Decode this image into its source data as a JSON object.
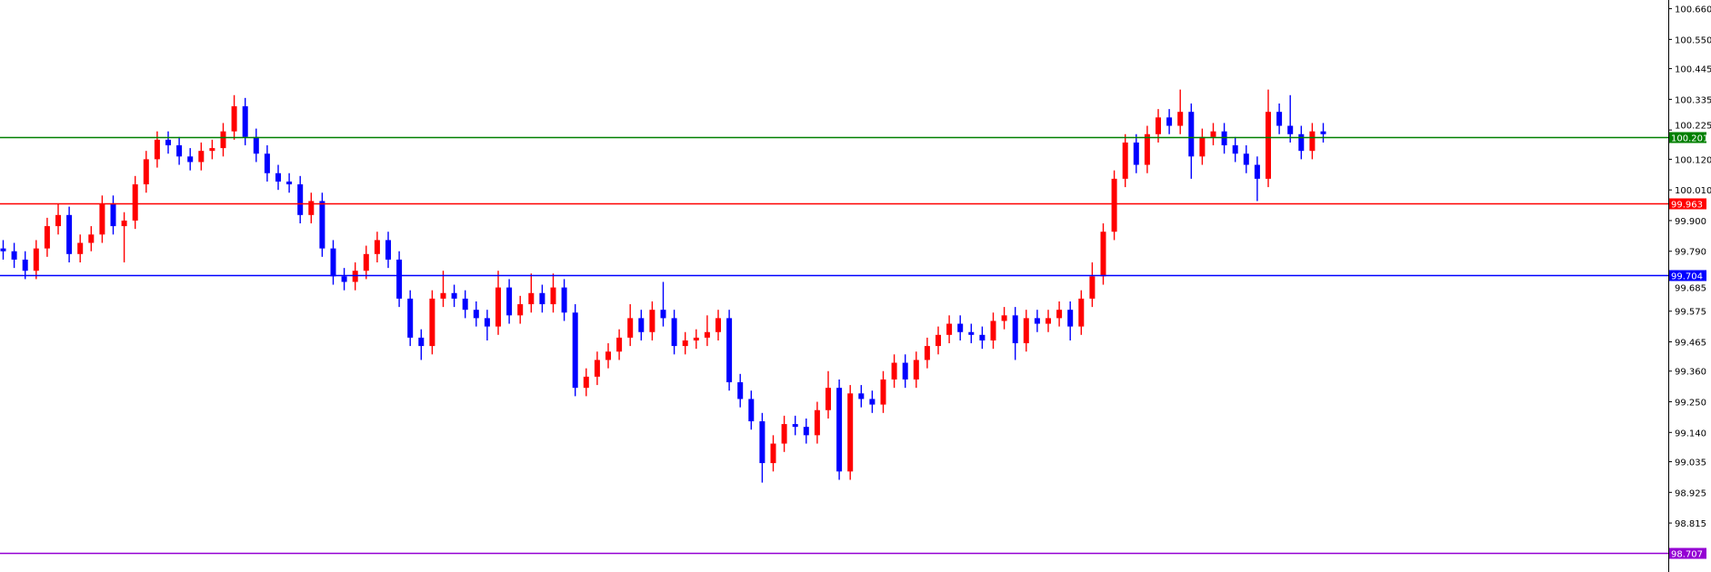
{
  "chart_data": {
    "type": "candlestick",
    "colors": {
      "bull": "#ff0000",
      "bear": "#0000ff",
      "axis": "#000000",
      "background": "#ffffff"
    },
    "ylim": [
      98.68,
      100.69
    ],
    "y_ticks": [
      "100.660",
      "100.550",
      "100.445",
      "100.335",
      "100.225",
      "100.120",
      "100.010",
      "99.900",
      "99.790",
      "99.685",
      "99.575",
      "99.465",
      "99.360",
      "99.250",
      "99.140",
      "99.035",
      "98.925",
      "98.815"
    ],
    "levels": [
      {
        "value": "100.201",
        "color": "#008000"
      },
      {
        "value": "99.963",
        "color": "#ff0000"
      },
      {
        "value": "99.704",
        "color": "#0000ff"
      },
      {
        "value": "98.707",
        "color": "#9400d3"
      }
    ],
    "candles_ohlc": [
      [
        99.8,
        99.83,
        99.76,
        99.79
      ],
      [
        99.79,
        99.82,
        99.73,
        99.76
      ],
      [
        99.76,
        99.79,
        99.69,
        99.72
      ],
      [
        99.72,
        99.83,
        99.69,
        99.8
      ],
      [
        99.8,
        99.91,
        99.77,
        99.88
      ],
      [
        99.88,
        99.96,
        99.85,
        99.92
      ],
      [
        99.92,
        99.95,
        99.75,
        99.78
      ],
      [
        99.78,
        99.85,
        99.75,
        99.82
      ],
      [
        99.82,
        99.88,
        99.79,
        99.85
      ],
      [
        99.85,
        99.99,
        99.82,
        99.96
      ],
      [
        99.96,
        99.99,
        99.85,
        99.88
      ],
      [
        99.88,
        99.93,
        99.75,
        99.9
      ],
      [
        99.9,
        100.06,
        99.87,
        100.03
      ],
      [
        100.03,
        100.15,
        100.0,
        100.12
      ],
      [
        100.12,
        100.22,
        100.09,
        100.19
      ],
      [
        100.19,
        100.22,
        100.14,
        100.17
      ],
      [
        100.17,
        100.2,
        100.1,
        100.13
      ],
      [
        100.13,
        100.16,
        100.08,
        100.11
      ],
      [
        100.11,
        100.18,
        100.08,
        100.15
      ],
      [
        100.15,
        100.19,
        100.12,
        100.16
      ],
      [
        100.16,
        100.25,
        100.13,
        100.22
      ],
      [
        100.22,
        100.35,
        100.19,
        100.31
      ],
      [
        100.31,
        100.34,
        100.17,
        100.2
      ],
      [
        100.2,
        100.23,
        100.11,
        100.14
      ],
      [
        100.14,
        100.17,
        100.04,
        100.07
      ],
      [
        100.07,
        100.1,
        100.01,
        100.04
      ],
      [
        100.04,
        100.07,
        100.0,
        100.03
      ],
      [
        100.03,
        100.06,
        99.89,
        99.92
      ],
      [
        99.92,
        100.0,
        99.89,
        99.97
      ],
      [
        99.97,
        100.0,
        99.77,
        99.8
      ],
      [
        99.8,
        99.83,
        99.67,
        99.7
      ],
      [
        99.7,
        99.73,
        99.65,
        99.68
      ],
      [
        99.68,
        99.75,
        99.65,
        99.72
      ],
      [
        99.72,
        99.81,
        99.69,
        99.78
      ],
      [
        99.78,
        99.86,
        99.75,
        99.83
      ],
      [
        99.83,
        99.86,
        99.73,
        99.76
      ],
      [
        99.76,
        99.79,
        99.59,
        99.62
      ],
      [
        99.62,
        99.65,
        99.45,
        99.48
      ],
      [
        99.48,
        99.51,
        99.4,
        99.45
      ],
      [
        99.45,
        99.65,
        99.42,
        99.62
      ],
      [
        99.62,
        99.72,
        99.59,
        99.64
      ],
      [
        99.64,
        99.67,
        99.59,
        99.62
      ],
      [
        99.62,
        99.65,
        99.55,
        99.58
      ],
      [
        99.58,
        99.61,
        99.52,
        99.55
      ],
      [
        99.55,
        99.58,
        99.47,
        99.52
      ],
      [
        99.52,
        99.72,
        99.49,
        99.66
      ],
      [
        99.66,
        99.69,
        99.53,
        99.56
      ],
      [
        99.56,
        99.63,
        99.53,
        99.6
      ],
      [
        99.6,
        99.71,
        99.57,
        99.64
      ],
      [
        99.64,
        99.67,
        99.57,
        99.6
      ],
      [
        99.6,
        99.71,
        99.57,
        99.66
      ],
      [
        99.66,
        99.69,
        99.54,
        99.57
      ],
      [
        99.57,
        99.6,
        99.27,
        99.3
      ],
      [
        99.3,
        99.37,
        99.27,
        99.34
      ],
      [
        99.34,
        99.43,
        99.31,
        99.4
      ],
      [
        99.4,
        99.46,
        99.37,
        99.43
      ],
      [
        99.43,
        99.51,
        99.4,
        99.48
      ],
      [
        99.48,
        99.6,
        99.45,
        99.55
      ],
      [
        99.55,
        99.58,
        99.47,
        99.5
      ],
      [
        99.5,
        99.61,
        99.47,
        99.58
      ],
      [
        99.58,
        99.68,
        99.52,
        99.55
      ],
      [
        99.55,
        99.58,
        99.42,
        99.45
      ],
      [
        99.45,
        99.5,
        99.42,
        99.47
      ],
      [
        99.47,
        99.51,
        99.44,
        99.48
      ],
      [
        99.48,
        99.56,
        99.45,
        99.5
      ],
      [
        99.5,
        99.58,
        99.47,
        99.55
      ],
      [
        99.55,
        99.58,
        99.29,
        99.32
      ],
      [
        99.32,
        99.35,
        99.23,
        99.26
      ],
      [
        99.26,
        99.29,
        99.15,
        99.18
      ],
      [
        99.18,
        99.21,
        98.96,
        99.03
      ],
      [
        99.03,
        99.13,
        99.0,
        99.1
      ],
      [
        99.1,
        99.2,
        99.07,
        99.17
      ],
      [
        99.17,
        99.2,
        99.13,
        99.16
      ],
      [
        99.16,
        99.19,
        99.1,
        99.13
      ],
      [
        99.13,
        99.25,
        99.1,
        99.22
      ],
      [
        99.22,
        99.36,
        99.19,
        99.3
      ],
      [
        99.3,
        99.33,
        98.97,
        99.0
      ],
      [
        99.0,
        99.31,
        98.97,
        99.28
      ],
      [
        99.28,
        99.31,
        99.23,
        99.26
      ],
      [
        99.26,
        99.29,
        99.21,
        99.24
      ],
      [
        99.24,
        99.36,
        99.21,
        99.33
      ],
      [
        99.33,
        99.42,
        99.3,
        99.39
      ],
      [
        99.39,
        99.42,
        99.3,
        99.33
      ],
      [
        99.33,
        99.43,
        99.3,
        99.4
      ],
      [
        99.4,
        99.48,
        99.37,
        99.45
      ],
      [
        99.45,
        99.52,
        99.42,
        99.49
      ],
      [
        99.49,
        99.56,
        99.46,
        99.53
      ],
      [
        99.53,
        99.56,
        99.47,
        99.5
      ],
      [
        99.5,
        99.53,
        99.46,
        99.49
      ],
      [
        99.49,
        99.52,
        99.44,
        99.47
      ],
      [
        99.47,
        99.57,
        99.44,
        99.54
      ],
      [
        99.54,
        99.59,
        99.51,
        99.56
      ],
      [
        99.56,
        99.59,
        99.4,
        99.46
      ],
      [
        99.46,
        99.58,
        99.43,
        99.55
      ],
      [
        99.55,
        99.58,
        99.5,
        99.53
      ],
      [
        99.53,
        99.58,
        99.5,
        99.55
      ],
      [
        99.55,
        99.61,
        99.52,
        99.58
      ],
      [
        99.58,
        99.61,
        99.47,
        99.52
      ],
      [
        99.52,
        99.65,
        99.49,
        99.62
      ],
      [
        99.62,
        99.75,
        99.59,
        99.7
      ],
      [
        99.7,
        99.89,
        99.67,
        99.86
      ],
      [
        99.86,
        100.08,
        99.83,
        100.05
      ],
      [
        100.05,
        100.21,
        100.02,
        100.18
      ],
      [
        100.18,
        100.21,
        100.07,
        100.1
      ],
      [
        100.1,
        100.24,
        100.07,
        100.21
      ],
      [
        100.21,
        100.3,
        100.18,
        100.27
      ],
      [
        100.27,
        100.3,
        100.21,
        100.24
      ],
      [
        100.24,
        100.37,
        100.21,
        100.29
      ],
      [
        100.29,
        100.32,
        100.05,
        100.13
      ],
      [
        100.13,
        100.23,
        100.1,
        100.2
      ],
      [
        100.2,
        100.25,
        100.17,
        100.22
      ],
      [
        100.22,
        100.25,
        100.14,
        100.17
      ],
      [
        100.17,
        100.2,
        100.11,
        100.14
      ],
      [
        100.14,
        100.17,
        100.07,
        100.1
      ],
      [
        100.1,
        100.13,
        99.97,
        100.05
      ],
      [
        100.05,
        100.37,
        100.02,
        100.29
      ],
      [
        100.29,
        100.32,
        100.21,
        100.24
      ],
      [
        100.24,
        100.35,
        100.18,
        100.21
      ],
      [
        100.21,
        100.24,
        100.12,
        100.15
      ],
      [
        100.15,
        100.25,
        100.12,
        100.22
      ],
      [
        100.22,
        100.25,
        100.18,
        100.21
      ]
    ]
  }
}
